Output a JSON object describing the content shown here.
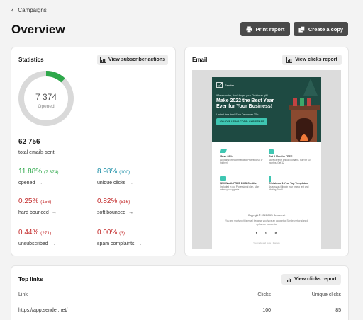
{
  "breadcrumb": {
    "label": "Campaigns"
  },
  "page": {
    "title": "Overview"
  },
  "header_buttons": {
    "print": "Print report",
    "copy": "Create a copy"
  },
  "statistics": {
    "title": "Statistics",
    "action": "View subscriber actions",
    "donut_value": "7 374",
    "donut_label": "Opened",
    "opened_fraction": 0.12,
    "bounced_fraction": 0.01,
    "total_value": "62 756",
    "total_label": "total emails sent",
    "metrics": [
      {
        "pct": "11.88%",
        "count": "(7 374)",
        "label": "opened",
        "color": "#2ea84a"
      },
      {
        "pct": "8.98%",
        "count": "(100)",
        "label": "unique clicks",
        "color": "#1d8fa7"
      },
      {
        "pct": "0.25%",
        "count": "(156)",
        "label": "hard bounced",
        "color": "#c32a2a"
      },
      {
        "pct": "0.82%",
        "count": "(516)",
        "label": "soft bounced",
        "color": "#c32a2a"
      },
      {
        "pct": "0.44%",
        "count": "(271)",
        "label": "unsubscribed",
        "color": "#c32a2a"
      },
      {
        "pct": "0.00%",
        "count": "(3)",
        "label": "spam complaints",
        "color": "#c32a2a"
      }
    ],
    "arrow": "→"
  },
  "email": {
    "title": "Email",
    "action": "View clicks report",
    "preview": {
      "logo": "Sender",
      "pre": "Wheelsender, don't forget your Christmas gift!",
      "headline": "Make 2022 the Best Year Ever for Your Business!",
      "sub": "Limited time deal. Ends December 27th",
      "cta": "30% OFF USING CODE: CHRISTMAS",
      "features": [
        {
          "title": "Save 30%",
          "text": "All plans! (Recommended: Professional or higher)"
        },
        {
          "title": "Get 6 Months FREE",
          "text": "More care for annual domains. Pay for 10 months, Get 12"
        },
        {
          "title": "$70 Worth FREE DMB Credits",
          "text": "Included in our Professional plan. More when you upgrade."
        },
        {
          "title": "Christmas 1 Year Top Templates",
          "text": "As easy as filling in your promo text and clicking Send!"
        }
      ],
      "copyright": "Copyright © 2013-2021 Sender.net",
      "footer_text": "You are receiving this email because you have an account at Sender.net or signed up for our newsletter",
      "social": [
        "f",
        "t",
        "in"
      ],
      "bottom": "You made and more · Manage"
    }
  },
  "top_links": {
    "title": "Top links",
    "action": "View clicks report",
    "columns": [
      "Link",
      "Clicks",
      "Unique clicks"
    ],
    "rows": [
      {
        "link": "https://app.sender.net/",
        "clicks": "100",
        "unique": "85"
      }
    ]
  }
}
